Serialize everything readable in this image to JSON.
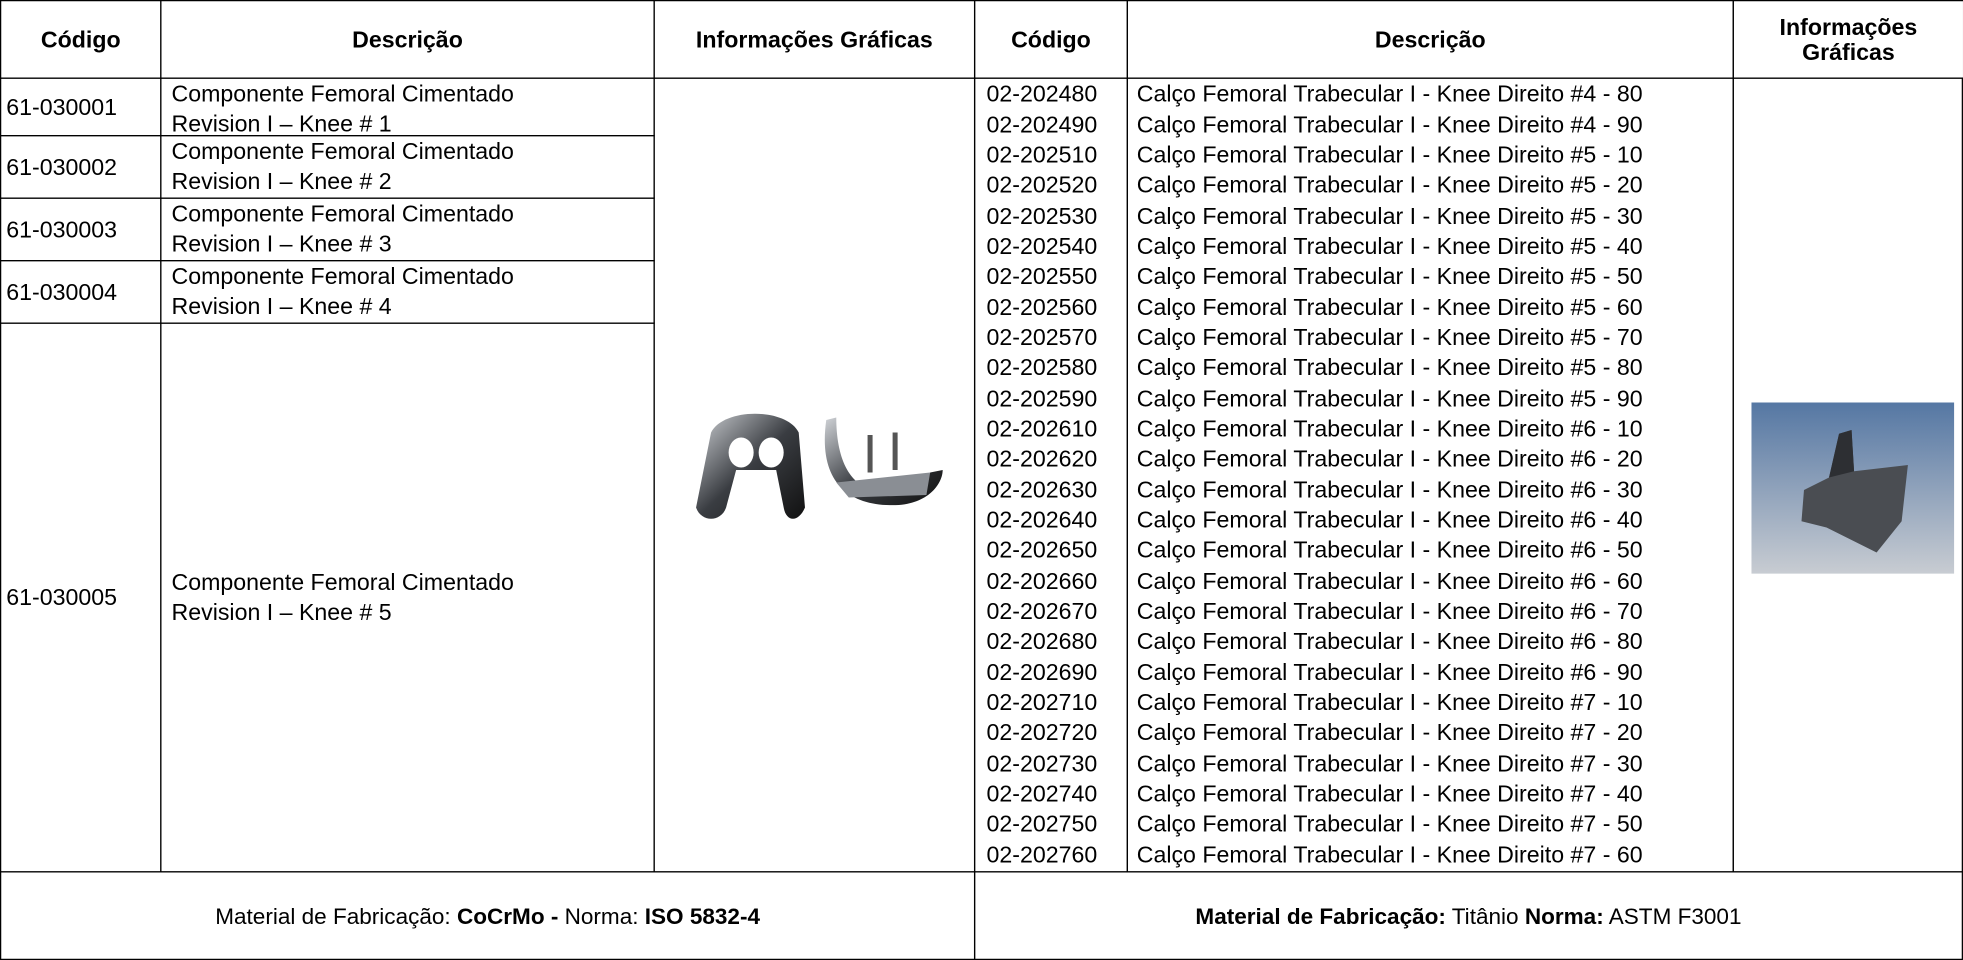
{
  "left_table": {
    "headers": [
      "Código",
      "Descrição",
      "Informações Gráficas"
    ],
    "rows": [
      {
        "code": "61-030001",
        "description": [
          "Componente Femoral Cimentado",
          "Revision I – Knee # 1"
        ]
      },
      {
        "code": "61-030002",
        "description": [
          "Componente Femoral Cimentado",
          "Revision I – Knee # 2"
        ]
      },
      {
        "code": "61-030003",
        "description": [
          "Componente Femoral Cimentado",
          "Revision I – Knee # 3"
        ]
      },
      {
        "code": "61-030004",
        "description": [
          "Componente Femoral Cimentado",
          "Revision I – Knee # 4"
        ]
      },
      {
        "code": "61-030005",
        "description": [
          "Componente Femoral Cimentado",
          "Revision I – Knee # 5"
        ]
      }
    ]
  },
  "right_table": {
    "headers": [
      "Código",
      "Descrição",
      "Informações Gráficas"
    ],
    "rows": [
      {
        "code": "02-202480",
        "description": "Calço Femoral Trabecular I - Knee Direito #4 - 80"
      },
      {
        "code": "02-202490",
        "description": "Calço Femoral Trabecular I - Knee Direito #4 - 90"
      },
      {
        "code": "02-202510",
        "description": "Calço Femoral Trabecular I - Knee Direito #5 - 10"
      },
      {
        "code": "02-202520",
        "description": "Calço Femoral Trabecular I - Knee Direito #5 - 20"
      },
      {
        "code": "02-202530",
        "description": "Calço Femoral Trabecular I - Knee Direito #5 - 30"
      },
      {
        "code": "02-202540",
        "description": "Calço Femoral Trabecular I - Knee Direito #5 - 40"
      },
      {
        "code": "02-202550",
        "description": "Calço Femoral Trabecular I - Knee Direito #5 - 50"
      },
      {
        "code": "02-202560",
        "description": "Calço Femoral Trabecular I - Knee Direito #5 - 60"
      },
      {
        "code": "02-202570",
        "description": "Calço Femoral Trabecular I - Knee Direito #5 - 70"
      },
      {
        "code": "02-202580",
        "description": "Calço Femoral Trabecular I - Knee Direito #5 - 80"
      },
      {
        "code": "02-202590",
        "description": "Calço Femoral Trabecular I - Knee Direito #5 - 90"
      },
      {
        "code": "02-202610",
        "description": "Calço Femoral Trabecular I - Knee Direito #6 - 10"
      },
      {
        "code": "02-202620",
        "description": "Calço Femoral Trabecular I - Knee Direito #6 - 20"
      },
      {
        "code": "02-202630",
        "description": "Calço Femoral Trabecular I - Knee Direito #6 - 30"
      },
      {
        "code": "02-202640",
        "description": "Calço Femoral Trabecular I - Knee Direito #6 - 40"
      },
      {
        "code": "02-202650",
        "description": "Calço Femoral Trabecular I - Knee Direito #6 - 50"
      },
      {
        "code": "02-202660",
        "description": "Calço Femoral Trabecular I - Knee Direito #6 - 60"
      },
      {
        "code": "02-202670",
        "description": "Calço Femoral Trabecular I - Knee Direito #6 - 70"
      },
      {
        "code": "02-202680",
        "description": "Calço Femoral Trabecular I - Knee Direito #6 - 80"
      },
      {
        "code": "02-202690",
        "description": "Calço Femoral Trabecular I - Knee Direito #6 - 90"
      },
      {
        "code": "02-202710",
        "description": "Calço Femoral Trabecular I - Knee Direito #7 - 10"
      },
      {
        "code": "02-202720",
        "description": "Calço Femoral Trabecular I - Knee Direito #7 - 20"
      },
      {
        "code": "02-202730",
        "description": "Calço Femoral Trabecular I - Knee Direito #7 - 30"
      },
      {
        "code": "02-202740",
        "description": "Calço Femoral Trabecular I - Knee Direito #7 - 40"
      },
      {
        "code": "02-202750",
        "description": "Calço Femoral Trabecular I - Knee Direito #7 - 50"
      },
      {
        "code": "02-202760",
        "description": "Calço Femoral Trabecular I - Knee Direito #7 - 60"
      }
    ]
  },
  "footer": {
    "left": [
      {
        "text": "Material de Fabricação: ",
        "bold": false
      },
      {
        "text": "CoCrMo -",
        "bold": true
      },
      {
        "text": " Norma: ",
        "bold": false
      },
      {
        "text": "ISO 5832-4",
        "bold": true
      }
    ],
    "right": [
      {
        "text": "Material de Fabricação:",
        "bold": true
      },
      {
        "text": " Titânio ",
        "bold": false
      },
      {
        "text": "Norma:",
        "bold": true
      },
      {
        "text": " ASTM F3001",
        "bold": false
      }
    ]
  }
}
